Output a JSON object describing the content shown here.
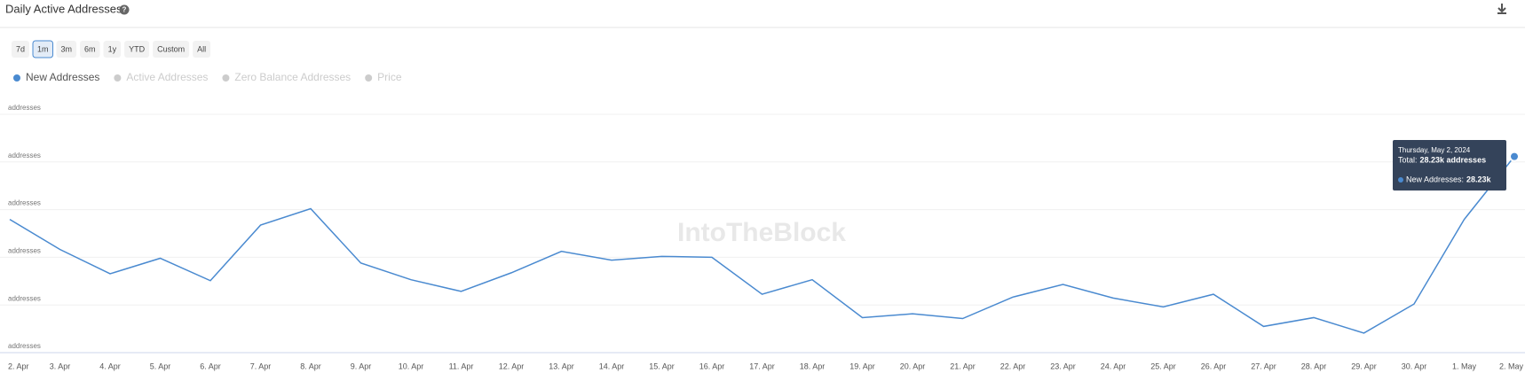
{
  "chart_data": {
    "type": "line",
    "title": "Daily Active Addresses",
    "range_buttons": [
      "7d",
      "1m",
      "3m",
      "6m",
      "1y",
      "YTD",
      "Custom",
      "All"
    ],
    "selected_range": 1,
    "watermark": "IntoTheBlock",
    "categories": [
      "2. Apr",
      "3. Apr",
      "4. Apr",
      "5. Apr",
      "6. Apr",
      "7. Apr",
      "8. Apr",
      "9. Apr",
      "10. Apr",
      "11. Apr",
      "12. Apr",
      "13. Apr",
      "14. Apr",
      "15. Apr",
      "16. Apr",
      "17. Apr",
      "18. Apr",
      "19. Apr",
      "20. Apr",
      "21. Apr",
      "22. Apr",
      "23. Apr",
      "24. Apr",
      "25. Apr",
      "26. Apr",
      "27. Apr",
      "28. Apr",
      "29. Apr",
      "30. Apr",
      "1. May",
      "2. May"
    ],
    "series": [
      {
        "name": "New Addresses",
        "color": "#4a8ad0",
        "values": [
          25590,
          24330,
          23310,
          23960,
          23020,
          25350,
          26040,
          23760,
          23060,
          22570,
          23350,
          24250,
          23880,
          24040,
          24000,
          22450,
          23060,
          21470,
          21630,
          21430,
          22330,
          22860,
          22290,
          21920,
          22450,
          21100,
          21470,
          20820,
          22040,
          25590,
          28230
        ]
      }
    ],
    "hidden_series": [
      {
        "name": "Active Addresses"
      },
      {
        "name": "Zero Balance Addresses"
      },
      {
        "name": "Price"
      }
    ],
    "hidden_color": "#cccccc",
    "ylim": [
      20000,
      30000
    ],
    "yticks": [
      {
        "value": 20000,
        "label": "addresses"
      },
      {
        "value": 22000,
        "label": "addresses"
      },
      {
        "value": 24000,
        "label": "addresses"
      },
      {
        "value": 26000,
        "label": "addresses"
      },
      {
        "value": 28000,
        "label": "addresses"
      },
      {
        "value": 30000,
        "label": "addresses"
      }
    ],
    "grid": true,
    "tooltip": {
      "date": "Thursday, May 2, 2024",
      "total_label": "Total:",
      "total": "28.23k addresses",
      "series_label": "New Addresses:",
      "value": "28.23k",
      "index": 30
    }
  }
}
